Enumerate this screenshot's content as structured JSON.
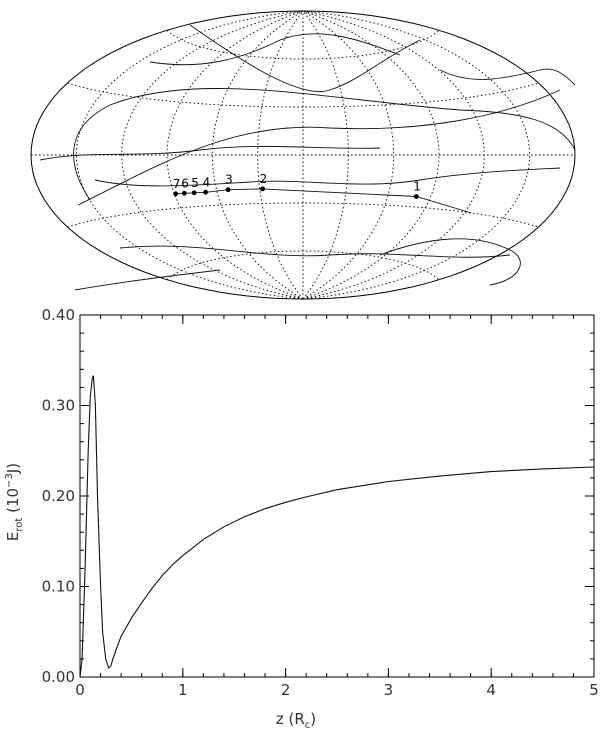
{
  "chart_data": [
    {
      "type": "map",
      "projection": "aitoff",
      "grid": true,
      "markers": [
        {
          "label": "1",
          "lon": 80,
          "lat": -24
        },
        {
          "label": "2",
          "lon": -28,
          "lat": -21
        },
        {
          "label": "3",
          "lon": -52,
          "lat": -21
        },
        {
          "label": "4",
          "lon": -68,
          "lat": -22
        },
        {
          "label": "5",
          "lon": -76,
          "lat": -22
        },
        {
          "label": "6",
          "lon": -83,
          "lat": -22
        },
        {
          "label": "7",
          "lon": -89,
          "lat": -22
        }
      ]
    },
    {
      "type": "line",
      "xlabel_main": "z",
      "xlabel_unit": "(R",
      "xlabel_sub": "c",
      "xlabel_close": ")",
      "ylabel_main": "E",
      "ylabel_sub": "rot",
      "ylabel_unit_pre": "(10",
      "ylabel_exp": "−3",
      "ylabel_unit_post": "J)",
      "xlim": [
        0,
        5
      ],
      "ylim": [
        0,
        0.4
      ],
      "xticks": [
        "0",
        "1",
        "2",
        "3",
        "4",
        "5"
      ],
      "yticks": [
        "0.00",
        "0.10",
        "0.20",
        "0.30",
        "0.40"
      ],
      "series": [
        {
          "x": [
            0,
            0.02,
            0.05,
            0.08,
            0.1,
            0.12,
            0.13,
            0.15,
            0.17,
            0.2,
            0.22,
            0.25,
            0.28,
            0.3,
            0.32,
            0.35,
            0.4,
            0.45,
            0.5,
            0.6,
            0.7,
            0.8,
            0.9,
            1.0,
            1.2,
            1.4,
            1.6,
            1.8,
            2.0,
            2.2,
            2.5,
            3.0,
            3.5,
            4.0,
            4.5,
            5.0
          ],
          "y": [
            0.0,
            0.02,
            0.12,
            0.25,
            0.31,
            0.33,
            0.333,
            0.3,
            0.2,
            0.1,
            0.05,
            0.02,
            0.01,
            0.012,
            0.02,
            0.03,
            0.045,
            0.055,
            0.065,
            0.082,
            0.098,
            0.112,
            0.124,
            0.134,
            0.152,
            0.166,
            0.177,
            0.186,
            0.193,
            0.199,
            0.207,
            0.216,
            0.222,
            0.227,
            0.23,
            0.232
          ]
        }
      ]
    }
  ]
}
